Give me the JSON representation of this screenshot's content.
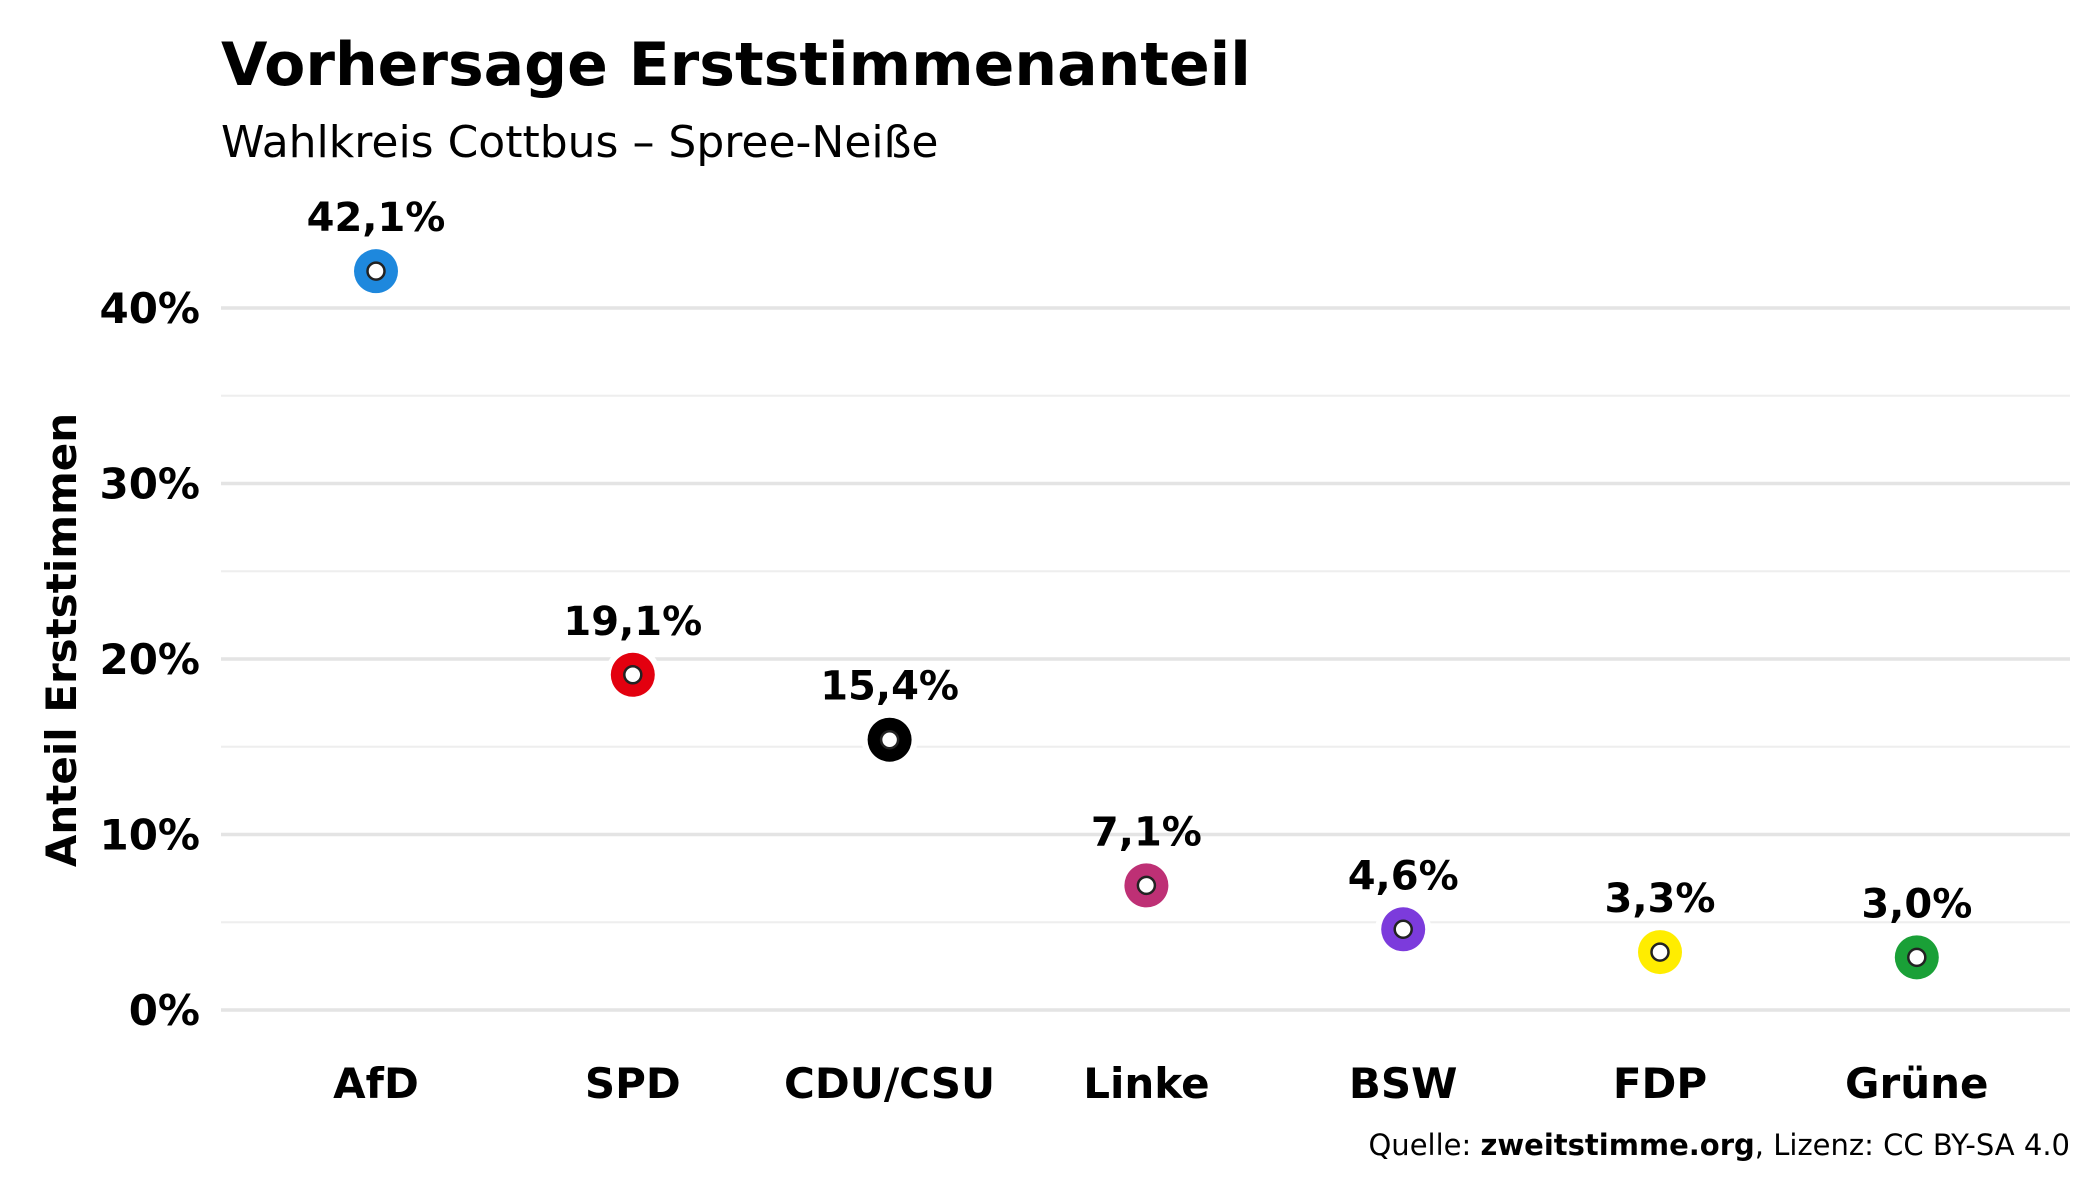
{
  "chart_data": {
    "type": "scatter",
    "title": "Vorhersage Erststimmenanteil",
    "subtitle": "Wahlkreis Cottbus – Spree-Neiße",
    "ylabel": "Anteil Erststimmen",
    "xlabel": "",
    "ylim": [
      0,
      45
    ],
    "yticks": [
      0,
      10,
      20,
      30,
      40
    ],
    "ytick_labels": [
      "0%",
      "10%",
      "20%",
      "30%",
      "40%"
    ],
    "grid": true,
    "legend": "none",
    "categories": [
      "AfD",
      "SPD",
      "CDU/CSU",
      "Linke",
      "BSW",
      "FDP",
      "Grüne"
    ],
    "values": [
      42.1,
      19.1,
      15.4,
      7.1,
      4.6,
      3.3,
      3.0
    ],
    "value_labels": [
      "42,1%",
      "19,1%",
      "15,4%",
      "7,1%",
      "4,6%",
      "3,3%",
      "3,0%"
    ],
    "colors": [
      "#1e88dd",
      "#e3000f",
      "#000000",
      "#be3075",
      "#7c3bdc",
      "#ffed00",
      "#1aa037"
    ]
  },
  "source": {
    "prefix": "Quelle: ",
    "site": "zweitstimme.org",
    "suffix": ", Lizenz: CC BY-SA 4.0"
  }
}
